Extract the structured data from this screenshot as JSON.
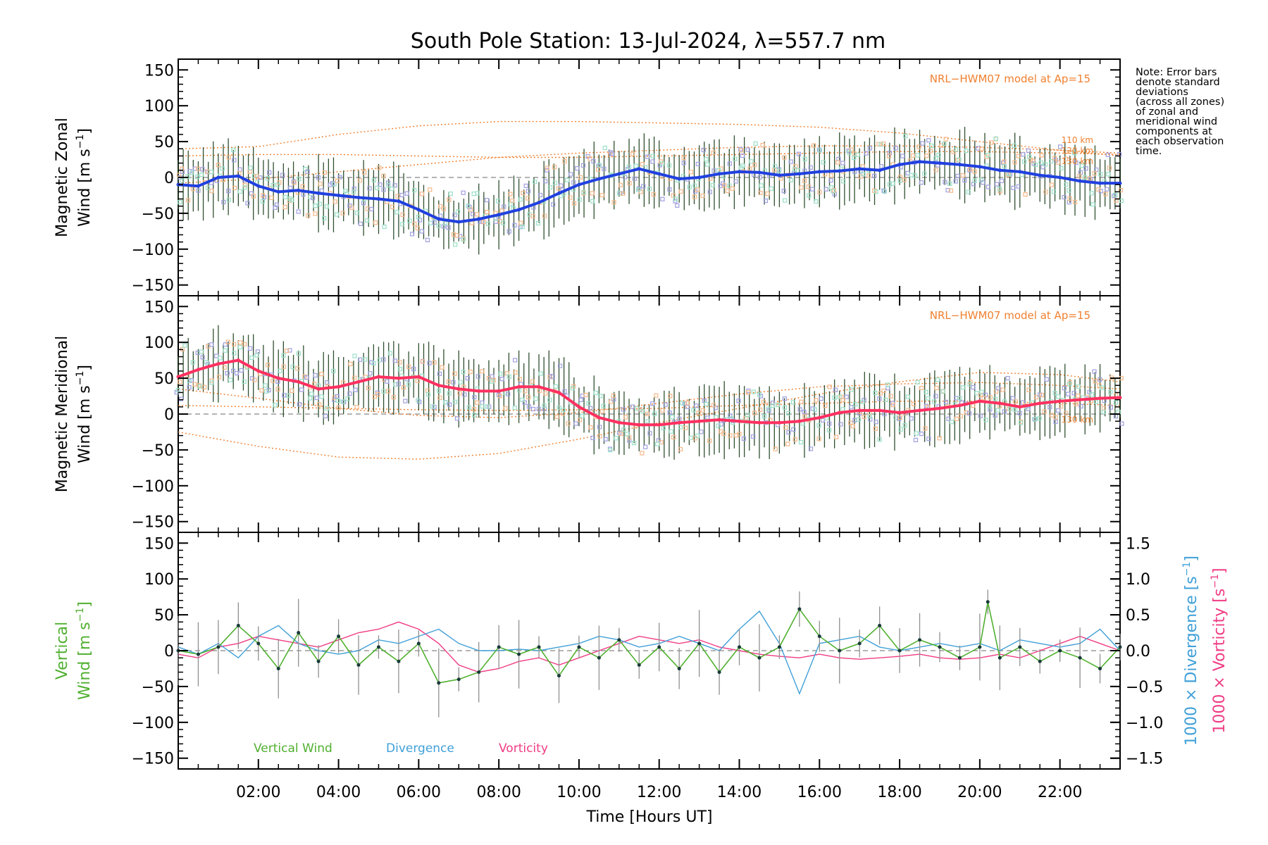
{
  "chart_data": {
    "type": "line",
    "title": "South Pole Station: 13-Jul-2024, λ=557.7 nm",
    "xlabel": "Time [Hours UT]",
    "xlim": [
      0.0,
      23.5
    ],
    "x_ticks": [
      2,
      4,
      6,
      8,
      10,
      12,
      14,
      16,
      18,
      20,
      22
    ],
    "x_tick_labels": [
      "02:00",
      "04:00",
      "06:00",
      "08:00",
      "10:00",
      "12:00",
      "14:00",
      "16:00",
      "18:00",
      "20:00",
      "22:00"
    ],
    "y_ticks": [
      150,
      100,
      50,
      0,
      -50,
      -100,
      -150
    ],
    "y_tick_labels": [
      "150",
      "100",
      "50",
      "0",
      "−50",
      "−100",
      "−150"
    ],
    "y2_ticks": [
      1.5,
      1.0,
      0.5,
      0.0,
      -0.5,
      -1.0,
      -1.5
    ],
    "y2_tick_labels": [
      "1.5",
      "1.0",
      "0.5",
      "0.0",
      "−0.5",
      "−1.0",
      "−1.5"
    ],
    "model_label": "NRL−HWM07 model at Ap=15",
    "note": [
      "Note: Error bars",
      "denote standard",
      "deviations",
      "(across all zones)",
      "of zonal and",
      "meridional wind",
      "components at",
      "each observation",
      "time."
    ],
    "colors": {
      "zonal": "#2040e0",
      "zonal_light": "#40a8e0",
      "meridional": "#ff3060",
      "vertical": "#50b030",
      "divergence": "#40a0d8",
      "vorticity": "#f03c84",
      "model": "#f08030",
      "zones": "#a0a0e0",
      "errbar": "#305030"
    },
    "panels": [
      {
        "name": "zonal",
        "ylabel_line1": "Magnetic Zonal",
        "ylabel_line2": "Wind [m s",
        "ylabel_sup": "−1",
        "ylabel_close": "]",
        "ylim": [
          -165,
          165
        ],
        "model_height_labels": [
          "110 km",
          "120 km",
          "130 km"
        ],
        "series": [
          {
            "name": "Magnetic Zonal Wind",
            "x": [
              0.0,
              0.5,
              1.0,
              1.5,
              2.0,
              2.5,
              3.0,
              3.5,
              4.0,
              4.5,
              5.0,
              5.5,
              6.0,
              6.5,
              7.0,
              7.5,
              8.0,
              8.5,
              9.0,
              9.5,
              10.0,
              10.5,
              11.0,
              11.5,
              12.0,
              12.5,
              13.0,
              13.5,
              14.0,
              14.5,
              15.0,
              15.5,
              16.0,
              16.5,
              17.0,
              17.5,
              18.0,
              18.5,
              19.0,
              19.5,
              20.0,
              20.5,
              21.0,
              21.5,
              22.0,
              22.5,
              23.0,
              23.5
            ],
            "y": [
              -10,
              -12,
              0,
              2,
              -12,
              -20,
              -18,
              -22,
              -25,
              -28,
              -30,
              -33,
              -45,
              -58,
              -62,
              -58,
              -52,
              -45,
              -35,
              -22,
              -10,
              -2,
              5,
              12,
              5,
              -2,
              0,
              5,
              8,
              7,
              3,
              5,
              8,
              9,
              12,
              10,
              18,
              22,
              20,
              18,
              15,
              10,
              8,
              3,
              0,
              -5,
              -8,
              -8
            ]
          },
          {
            "name": "Model 110 km",
            "x": [
              0,
              2,
              4,
              6,
              8,
              10,
              12,
              14,
              16,
              18,
              20,
              22,
              23.5
            ],
            "y": [
              40,
              43,
              60,
              72,
              78,
              78,
              76,
              74,
              70,
              62,
              50,
              38,
              30
            ]
          },
          {
            "name": "Model 120 km",
            "x": [
              0,
              2,
              4,
              6,
              8,
              10,
              12,
              14,
              16,
              18,
              20,
              22,
              23.5
            ],
            "y": [
              -8,
              -2,
              8,
              18,
              28,
              34,
              38,
              42,
              44,
              44,
              42,
              38,
              34
            ]
          },
          {
            "name": "Model 130 km",
            "x": [
              0,
              2,
              4,
              6,
              8,
              10,
              12,
              14,
              16,
              18,
              20,
              22,
              23.5
            ],
            "y": [
              30,
              32,
              32,
              30,
              28,
              28,
              30,
              32,
              34,
              36,
              36,
              34,
              32
            ]
          }
        ]
      },
      {
        "name": "meridional",
        "ylabel_line1": "Magnetic Meridional",
        "ylabel_line2": "Wind [m s",
        "ylabel_sup": "−1",
        "ylabel_close": "]",
        "ylim": [
          -165,
          165
        ],
        "model_height_labels": [
          "130 km"
        ],
        "series": [
          {
            "name": "Magnetic Meridional Wind",
            "x": [
              0.0,
              0.5,
              1.0,
              1.5,
              2.0,
              2.5,
              3.0,
              3.5,
              4.0,
              4.5,
              5.0,
              5.5,
              6.0,
              6.5,
              7.0,
              7.5,
              8.0,
              8.5,
              9.0,
              9.5,
              10.0,
              10.5,
              11.0,
              11.5,
              12.0,
              12.5,
              13.0,
              13.5,
              14.0,
              14.5,
              15.0,
              15.5,
              16.0,
              16.5,
              17.0,
              17.5,
              18.0,
              18.5,
              19.0,
              19.5,
              20.0,
              20.5,
              21.0,
              21.5,
              22.0,
              22.5,
              23.0,
              23.5
            ],
            "y": [
              52,
              62,
              70,
              75,
              60,
              50,
              45,
              35,
              38,
              45,
              52,
              50,
              52,
              40,
              35,
              32,
              32,
              38,
              38,
              30,
              10,
              -5,
              -12,
              -15,
              -15,
              -12,
              -10,
              -8,
              -10,
              -12,
              -12,
              -10,
              -5,
              2,
              5,
              5,
              2,
              5,
              8,
              12,
              18,
              15,
              10,
              15,
              18,
              20,
              22,
              23
            ]
          },
          {
            "name": "Model 110 km",
            "x": [
              0,
              2,
              4,
              6,
              8,
              10,
              12,
              14,
              16,
              18,
              20,
              22,
              23.5
            ],
            "y": [
              -25,
              -45,
              -60,
              -63,
              -55,
              -35,
              -12,
              8,
              28,
              45,
              58,
              55,
              45
            ]
          },
          {
            "name": "Model 120 km",
            "x": [
              0,
              2,
              4,
              6,
              8,
              10,
              12,
              14,
              16,
              18,
              20,
              22,
              23.5
            ],
            "y": [
              35,
              22,
              8,
              -2,
              -5,
              2,
              15,
              28,
              38,
              42,
              44,
              40,
              35
            ]
          },
          {
            "name": "Model 130 km",
            "x": [
              0,
              2,
              4,
              6,
              8,
              10,
              12,
              14,
              16,
              18,
              20,
              22,
              23.5
            ],
            "y": [
              12,
              10,
              8,
              6,
              5,
              6,
              8,
              12,
              15,
              18,
              18,
              15,
              12
            ]
          }
        ]
      },
      {
        "name": "vertical",
        "ylabel_line1": "Vertical",
        "ylabel_line2": "Wind [m s",
        "ylabel_sup": "−1",
        "ylabel_close": "]",
        "ylim": [
          -165,
          165
        ],
        "y2label_div": "1000 × Divergence [s",
        "y2label_vor": "1000 × Vorticity [s",
        "y2label_sup": "−1",
        "y2label_close": "]",
        "y2lim": [
          -1.65,
          1.65
        ],
        "legend": [
          "Vertical Wind",
          "Divergence",
          "Vorticity"
        ],
        "series": [
          {
            "name": "Vertical Wind",
            "x": [
              0.0,
              0.5,
              1.0,
              1.5,
              2.0,
              2.5,
              3.0,
              3.5,
              4.0,
              4.5,
              5.0,
              5.5,
              6.0,
              6.5,
              7.0,
              7.5,
              8.0,
              8.5,
              9.0,
              9.5,
              10.0,
              10.5,
              11.0,
              11.5,
              12.0,
              12.5,
              13.0,
              13.5,
              14.0,
              14.5,
              15.0,
              15.5,
              16.0,
              16.5,
              17.0,
              17.5,
              18.0,
              18.5,
              19.0,
              19.5,
              20.0,
              20.2,
              20.5,
              21.0,
              21.5,
              22.0,
              22.5,
              23.0,
              23.5
            ],
            "y": [
              0,
              -5,
              5,
              35,
              10,
              -25,
              25,
              -15,
              20,
              -20,
              5,
              -15,
              10,
              -45,
              -40,
              -30,
              5,
              -5,
              5,
              -35,
              5,
              -10,
              15,
              -20,
              5,
              -25,
              10,
              -30,
              5,
              -10,
              5,
              58,
              20,
              0,
              10,
              35,
              0,
              15,
              5,
              -10,
              5,
              68,
              -10,
              5,
              -15,
              0,
              -10,
              -25,
              5
            ]
          },
          {
            "name": "Divergence",
            "x": [
              0.0,
              0.5,
              1.0,
              1.5,
              2.0,
              2.5,
              3.0,
              3.5,
              4.0,
              4.5,
              5.0,
              5.5,
              6.0,
              6.5,
              7.0,
              7.5,
              8.0,
              8.5,
              9.0,
              9.5,
              10.0,
              10.5,
              11.0,
              11.5,
              12.0,
              12.5,
              13.0,
              13.5,
              14.0,
              14.5,
              15.0,
              15.5,
              16.0,
              16.5,
              17.0,
              17.5,
              18.0,
              18.5,
              19.0,
              19.5,
              20.0,
              20.5,
              21.0,
              21.5,
              22.0,
              22.5,
              23.0,
              23.5
            ],
            "y": [
              0.05,
              -0.05,
              0.1,
              -0.1,
              0.2,
              0.35,
              0.1,
              0.0,
              -0.05,
              0.0,
              0.15,
              0.1,
              0.2,
              0.3,
              0.1,
              0.0,
              0.0,
              0.02,
              0.0,
              0.05,
              0.1,
              0.2,
              0.15,
              0.05,
              0.1,
              0.2,
              0.1,
              0.0,
              0.3,
              0.55,
              0.1,
              -0.6,
              0.1,
              0.15,
              0.2,
              0.05,
              0.0,
              0.05,
              0.1,
              0.05,
              0.1,
              0.0,
              0.15,
              0.1,
              0.05,
              0.1,
              0.3,
              0.0
            ]
          },
          {
            "name": "Vorticity",
            "x": [
              0.0,
              0.5,
              1.0,
              1.5,
              2.0,
              2.5,
              3.0,
              3.5,
              4.0,
              4.5,
              5.0,
              5.5,
              6.0,
              6.5,
              7.0,
              7.5,
              8.0,
              8.5,
              9.0,
              9.5,
              10.0,
              10.5,
              11.0,
              11.5,
              12.0,
              12.5,
              13.0,
              13.5,
              14.0,
              14.5,
              15.0,
              15.5,
              16.0,
              16.5,
              17.0,
              17.5,
              18.0,
              18.5,
              19.0,
              19.5,
              20.0,
              20.5,
              21.0,
              21.5,
              22.0,
              22.5,
              23.0,
              23.5
            ],
            "y": [
              -0.05,
              -0.1,
              0.05,
              0.1,
              0.2,
              0.15,
              0.1,
              0.05,
              0.15,
              0.25,
              0.3,
              0.4,
              0.3,
              0.1,
              -0.2,
              -0.3,
              -0.25,
              -0.15,
              -0.1,
              -0.2,
              -0.1,
              0.0,
              0.1,
              0.2,
              0.15,
              0.1,
              0.15,
              0.05,
              0.0,
              -0.05,
              -0.08,
              -0.1,
              -0.05,
              -0.1,
              -0.12,
              -0.1,
              -0.08,
              -0.05,
              -0.1,
              -0.12,
              -0.1,
              -0.05,
              -0.1,
              0.0,
              0.1,
              0.2,
              0.1,
              0.0
            ]
          }
        ]
      }
    ]
  }
}
